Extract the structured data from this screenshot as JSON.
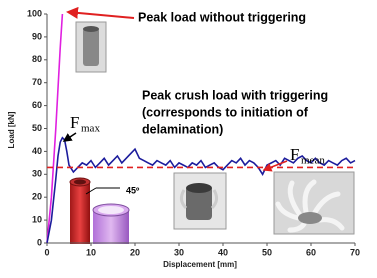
{
  "chart_data": {
    "type": "line",
    "x_label": "Displacement [mm]",
    "y_label": "Load [kN]",
    "xlim": [
      0,
      70
    ],
    "xticks": [
      0,
      10,
      20,
      30,
      40,
      50,
      60,
      70
    ],
    "ylim": [
      0,
      100
    ],
    "yticks": [
      0,
      10,
      20,
      30,
      40,
      50,
      60,
      70,
      80,
      90,
      100
    ],
    "series": [
      {
        "color": "#e020e0",
        "style": "solid",
        "x": [
          0,
          1,
          2,
          3,
          3.5
        ],
        "values": [
          0,
          20,
          50,
          85,
          100
        ]
      },
      {
        "color": "#1c1c9c",
        "style": "solid",
        "x": [
          0,
          1,
          2,
          2.5,
          3,
          3.5,
          4,
          4.5,
          5,
          6,
          7,
          8,
          9,
          10,
          11,
          12,
          13,
          14,
          15,
          16,
          17,
          18,
          19,
          20,
          21,
          22,
          23,
          24,
          25,
          26,
          27,
          28,
          29,
          30,
          31,
          32,
          33,
          34,
          35,
          36,
          37,
          38,
          39,
          40,
          41,
          42,
          43,
          44,
          45,
          46,
          47,
          48,
          49,
          50,
          51,
          52,
          53,
          54,
          55,
          56,
          57,
          58,
          59,
          60,
          61,
          62,
          63,
          64,
          65,
          66,
          67,
          68,
          69,
          70
        ],
        "values": [
          0,
          10,
          28,
          38,
          44,
          46,
          45,
          40,
          34,
          31,
          33,
          35,
          34,
          36,
          33,
          35,
          37,
          34,
          36,
          38,
          35,
          37,
          39,
          41,
          37,
          36,
          35,
          34,
          36,
          35,
          34,
          36,
          33,
          35,
          34,
          33,
          35,
          34,
          36,
          33,
          34,
          35,
          33,
          32,
          34,
          36,
          35,
          37,
          34,
          36,
          35,
          33,
          30,
          34,
          35,
          36,
          34,
          37,
          36,
          35,
          37,
          38,
          36,
          35,
          37,
          35,
          34,
          36,
          35,
          34,
          36,
          37,
          35,
          36
        ]
      },
      {
        "color": "#e02020",
        "style": "dashed",
        "x": [
          0,
          70
        ],
        "values": [
          33,
          33
        ]
      }
    ],
    "annotations": {
      "no_trigger": "Peak load without triggering",
      "with_trigger": [
        "Peak crush load with triggering",
        "(corresponds to initiation of",
        "delamination)"
      ],
      "fmax": {
        "symbol": "F",
        "subscript": "max"
      },
      "fmean": {
        "symbol": "F",
        "subscript": "mean"
      },
      "angle": "45º"
    }
  }
}
